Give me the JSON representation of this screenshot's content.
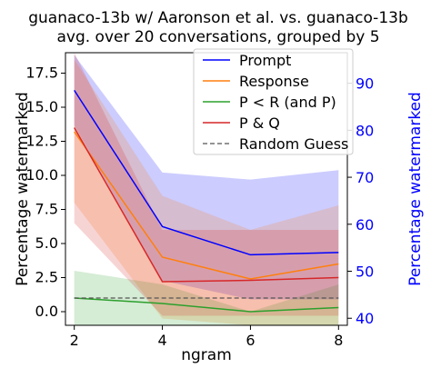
{
  "chart_data": {
    "type": "line",
    "title_line1": "guanaco-13b w/ Aaronson et al. vs. guanaco-13b",
    "title_line2": "avg. over 20 conversations, grouped by 5",
    "xlabel": "ngram",
    "ylabel_left": "Percentage watermarked",
    "ylabel_right": "Percentage watermarked",
    "x": [
      2,
      4,
      6,
      8
    ],
    "xticks": [
      "2",
      "4",
      "6",
      "8"
    ],
    "ylim_left": [
      -1.0,
      19.0
    ],
    "yticks_left": [
      "0.0",
      "2.5",
      "5.0",
      "7.5",
      "10.0",
      "12.5",
      "15.0",
      "17.5"
    ],
    "ylim_right": [
      38.5,
      96.5
    ],
    "yticks_right": [
      "40",
      "50",
      "60",
      "70",
      "80",
      "90"
    ],
    "axis_right_color": "#0000ff",
    "legend_position": "top-right",
    "grid": false,
    "series": [
      {
        "name": "Prompt",
        "axis": "right",
        "color": "#0000ff",
        "values": [
          88.5,
          59.5,
          53.5,
          54.0
        ],
        "band_low": [
          81.0,
          48.0,
          44.0,
          44.0
        ],
        "band_high": [
          96.0,
          71.0,
          69.5,
          71.5
        ]
      },
      {
        "name": "Response",
        "axis": "left",
        "color": "#ff7f0e",
        "values": [
          13.2,
          4.0,
          2.4,
          3.5
        ],
        "band_low": [
          8.0,
          -0.5,
          -1.0,
          -1.0
        ],
        "band_high": [
          18.5,
          8.5,
          6.0,
          7.8
        ]
      },
      {
        "name": "P < R (and P)",
        "axis": "left",
        "color": "#2ca02c",
        "values": [
          1.0,
          0.6,
          0.0,
          0.3
        ],
        "band_low": [
          -1.0,
          -1.0,
          -1.0,
          -1.0
        ],
        "band_high": [
          3.0,
          2.0,
          0.0,
          2.0
        ]
      },
      {
        "name": "P & Q",
        "axis": "left",
        "color": "#d62728",
        "values": [
          13.5,
          2.2,
          2.3,
          2.5
        ],
        "band_low": [
          6.5,
          -0.3,
          -0.3,
          -0.3
        ],
        "band_high": [
          19.0,
          6.0,
          6.0,
          6.0
        ]
      },
      {
        "name": "Random Guess",
        "axis": "left",
        "color": "#555555",
        "dashed": true,
        "values": [
          1.0,
          1.0,
          1.0,
          1.0
        ]
      }
    ]
  }
}
